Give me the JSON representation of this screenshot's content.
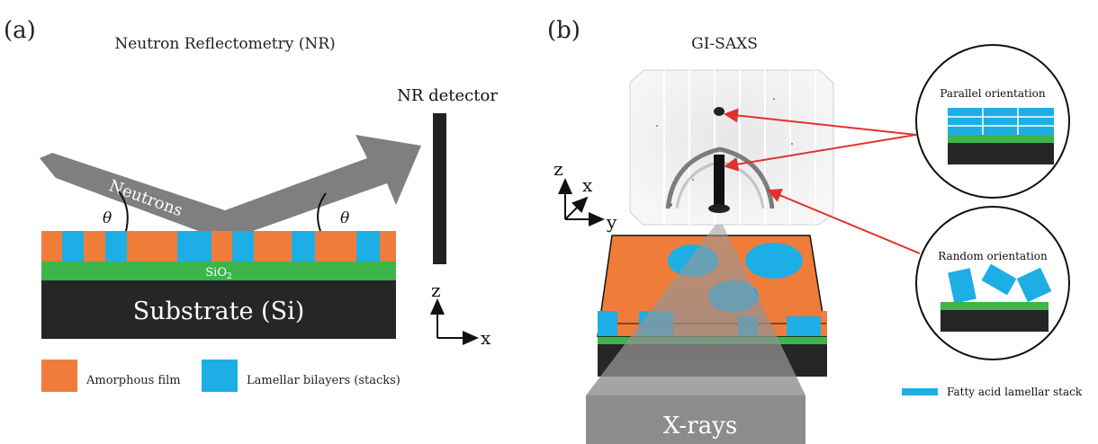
{
  "panel_a": {
    "label": "(a)",
    "title": "Neutron Reflectometry (NR)",
    "detector_label": "NR detector",
    "beam_label": "Neutrons",
    "theta_left": "θ",
    "theta_right": "θ",
    "sio2_label": "SiO",
    "sio2_sub": "2",
    "substrate_label": "Substrate (Si)",
    "axis_z": "z",
    "axis_x": "x",
    "legend": [
      {
        "label": "Amorphous film",
        "color": "#f07c3a"
      },
      {
        "label": "Lamellar bilayers (stacks)",
        "color": "#1eaee6"
      }
    ]
  },
  "panel_b": {
    "label": "(b)",
    "title": "GI-SAXS",
    "axis_z": "z",
    "axis_x": "x",
    "axis_y": "y",
    "xray_label": "X-rays",
    "parallel_label": "Parallel orientation",
    "random_label": "Random orientation",
    "legend_label": "Fatty acid lamellar stack"
  },
  "colors": {
    "orange": "#f07c3a",
    "blue": "#1eaee6",
    "green": "#3db54a",
    "dark": "#262626",
    "beam": "#7f7f7f",
    "arrow_red": "#e0332d"
  }
}
